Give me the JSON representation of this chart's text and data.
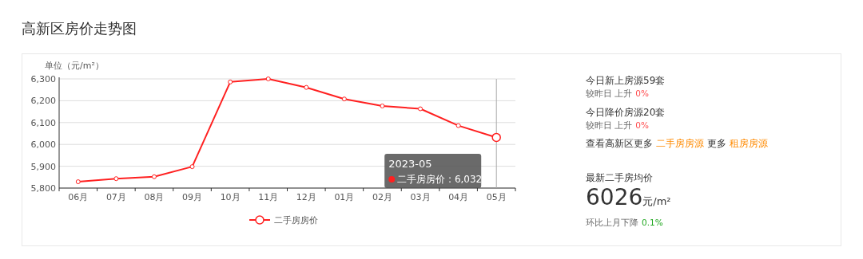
{
  "chart_data": [
    {
      "type": "line",
      "title": "高新区房价走势图",
      "ylabel": "单位（元/m²）",
      "categories": [
        "06月",
        "07月",
        "08月",
        "09月",
        "10月",
        "11月",
        "12月",
        "01月",
        "02月",
        "03月",
        "04月",
        "05月"
      ],
      "series": [
        {
          "name": "二手房房价",
          "color": "#ff2020",
          "values": [
            5829,
            5843,
            5852,
            5898,
            6286,
            6300,
            6261,
            6208,
            6176,
            6163,
            6086,
            6032
          ]
        }
      ],
      "ylim": [
        5800,
        6300
      ],
      "yticks": [
        {
          "value": 5800,
          "label": "5,800"
        },
        {
          "value": 5900,
          "label": "5,900"
        },
        {
          "value": 6000,
          "label": "6,000"
        },
        {
          "value": 6100,
          "label": "6,100"
        },
        {
          "value": 6200,
          "label": "6,200"
        },
        {
          "value": 6300,
          "label": "6,300"
        }
      ],
      "grid": "y",
      "legend": "bottom",
      "marker": "circle",
      "line_style": "solid",
      "ref_lines": [
        {
          "axis": "x",
          "value": "05月",
          "color": "#aaaaaa"
        }
      ],
      "annotations": [
        "2023-05",
        "二手房房价 : 6,032"
      ]
    },
    {
      "type": "other",
      "annotations": [
        "今日新上房源59套",
        "较昨日 上升",
        "0%",
        "今日降价房源20套",
        "较昨日 上升",
        "0%",
        "查看高新区更多",
        "二手房房源",
        "更多",
        "租房房源",
        "最新二手房均价",
        "6026",
        "元/m²",
        "环比上月下降",
        "0.1%"
      ]
    }
  ]
}
